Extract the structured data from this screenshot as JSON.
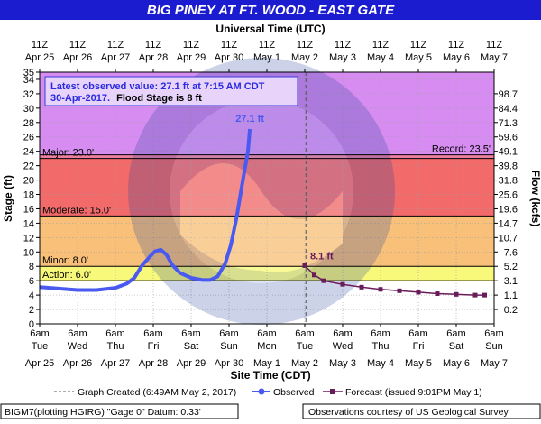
{
  "header": {
    "title": "BIG PINEY AT FT. WOOD - EAST GATE",
    "top_axis_title": "Universal Time (UTC)",
    "bottom_axis_title": "Site Time (CDT)",
    "left_axis_title": "Stage (ft)",
    "right_axis_title": "Flow (kcfs)"
  },
  "info_box": {
    "line1": "Latest observed value: 27.1 ft at 7:15 AM CDT",
    "line2_date": "30-Apr-2017.",
    "line2_flood": "Flood Stage is 8 ft"
  },
  "legend": {
    "graph_created": "Graph Created (6:49AM May 2, 2017)",
    "observed": "Observed",
    "forecast": "Forecast (issued 9:01PM May 1)"
  },
  "footer": {
    "left": "BIGM7(plotting HGIRG) \"Gage 0\" Datum:  0.33'",
    "right": "Observations courtesy of US Geological Survey"
  },
  "watermark": "NATIONAL OCEANIC AND ATMOSPHERIC ADMINISTRATION · U.S. DEPARTMENT OF COMMERCE · NOAA",
  "colors": {
    "title_bg": "#1b1bd0",
    "record_band": "#d68cf0",
    "major_band": "#ec7fa0",
    "moderate_band": "#f26a6a",
    "minor_band": "#f9c07a",
    "action_band": "#f8f87a",
    "normal_band": "#ffffff",
    "observed": "#4a5af0",
    "forecast": "#6a1b5a",
    "info_text": "#2a2ae0"
  },
  "chart_data": {
    "type": "line",
    "ylim": [
      0,
      35
    ],
    "y_ticks": [
      0,
      2,
      4,
      6,
      8,
      10,
      12,
      14,
      16,
      18,
      20,
      22,
      24,
      26,
      28,
      30,
      32,
      34,
      35
    ],
    "right_ticks": [
      "0.2",
      "1.1",
      "3.1",
      "5.2",
      "7.6",
      "10.7",
      "14.7",
      "19.6",
      "25.6",
      "31.8",
      "39.8",
      "49.1",
      "59.6",
      "71.3",
      "84.4",
      "98.7"
    ],
    "right_tick_stages": [
      2,
      4,
      6,
      8,
      10,
      12,
      14,
      16,
      18,
      20,
      22,
      24,
      26,
      28,
      30,
      32
    ],
    "x_range_days": [
      0,
      12
    ],
    "top_ticks": [
      {
        "h": "11Z",
        "d": "Apr 25"
      },
      {
        "h": "11Z",
        "d": "Apr 26"
      },
      {
        "h": "11Z",
        "d": "Apr 27"
      },
      {
        "h": "11Z",
        "d": "Apr 28"
      },
      {
        "h": "11Z",
        "d": "Apr 29"
      },
      {
        "h": "11Z",
        "d": "Apr 30"
      },
      {
        "h": "11Z",
        "d": "May 1"
      },
      {
        "h": "11Z",
        "d": "May 2"
      },
      {
        "h": "11Z",
        "d": "May 3"
      },
      {
        "h": "11Z",
        "d": "May 4"
      },
      {
        "h": "11Z",
        "d": "May 5"
      },
      {
        "h": "11Z",
        "d": "May 6"
      },
      {
        "h": "11Z",
        "d": "May 7"
      }
    ],
    "bottom_ticks": [
      {
        "t": "6am",
        "w": "Tue",
        "d": "Apr 25"
      },
      {
        "t": "6am",
        "w": "Wed",
        "d": "Apr 26"
      },
      {
        "t": "6am",
        "w": "Thu",
        "d": "Apr 27"
      },
      {
        "t": "6am",
        "w": "Fri",
        "d": "Apr 28"
      },
      {
        "t": "6am",
        "w": "Sat",
        "d": "Apr 29"
      },
      {
        "t": "6am",
        "w": "Sun",
        "d": "Apr 30"
      },
      {
        "t": "6am",
        "w": "Mon",
        "d": "May 1"
      },
      {
        "t": "6am",
        "w": "Tue",
        "d": "May 2"
      },
      {
        "t": "6am",
        "w": "Wed",
        "d": "May 3"
      },
      {
        "t": "6am",
        "w": "Thu",
        "d": "May 4"
      },
      {
        "t": "6am",
        "w": "Fri",
        "d": "May 5"
      },
      {
        "t": "6am",
        "w": "Sat",
        "d": "May 6"
      },
      {
        "t": "6am",
        "w": "Sun",
        "d": "May 7"
      }
    ],
    "flood_levels": [
      {
        "name": "Action",
        "stage": 6,
        "label": "Action: 6.0'"
      },
      {
        "name": "Minor",
        "stage": 8,
        "label": "Minor: 8.0'"
      },
      {
        "name": "Moderate",
        "stage": 15,
        "label": "Moderate: 15.0'"
      },
      {
        "name": "Major",
        "stage": 23,
        "label": "Major: 23.0'"
      },
      {
        "name": "Record",
        "stage": 23.5,
        "label": "Record: 23.5'"
      }
    ],
    "graph_created_day": 7.03,
    "observed": {
      "name": "Observed",
      "label": "27.1 ft",
      "points": [
        [
          0,
          5.1
        ],
        [
          0.5,
          4.9
        ],
        [
          1.0,
          4.7
        ],
        [
          1.5,
          4.7
        ],
        [
          2.0,
          5.0
        ],
        [
          2.3,
          5.6
        ],
        [
          2.5,
          6.4
        ],
        [
          2.7,
          8.1
        ],
        [
          2.9,
          9.3
        ],
        [
          3.05,
          10.1
        ],
        [
          3.2,
          10.3
        ],
        [
          3.35,
          9.6
        ],
        [
          3.5,
          8.2
        ],
        [
          3.7,
          7.1
        ],
        [
          4.0,
          6.4
        ],
        [
          4.3,
          6.1
        ],
        [
          4.5,
          6.1
        ],
        [
          4.7,
          6.6
        ],
        [
          4.9,
          8.4
        ],
        [
          5.05,
          11.0
        ],
        [
          5.2,
          14.8
        ],
        [
          5.35,
          19.5
        ],
        [
          5.5,
          24.0
        ],
        [
          5.55,
          27.1
        ]
      ]
    },
    "forecast": {
      "name": "Forecast",
      "label": "8.1 ft",
      "points": [
        [
          7.0,
          8.1
        ],
        [
          7.25,
          6.8
        ],
        [
          7.5,
          6.0
        ],
        [
          8.0,
          5.5
        ],
        [
          8.5,
          5.1
        ],
        [
          9.0,
          4.8
        ],
        [
          9.5,
          4.6
        ],
        [
          10.0,
          4.4
        ],
        [
          10.5,
          4.2
        ],
        [
          11.0,
          4.1
        ],
        [
          11.5,
          4.0
        ],
        [
          11.75,
          4.0
        ]
      ]
    }
  }
}
